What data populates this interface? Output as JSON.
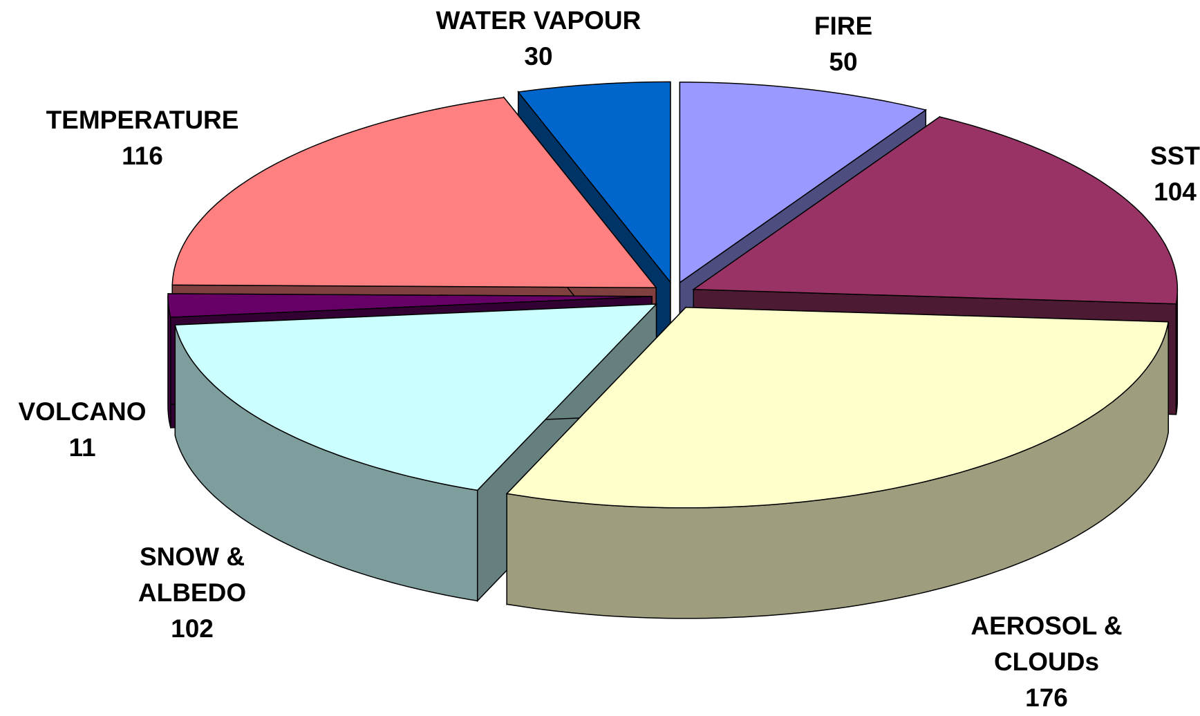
{
  "chart_data": {
    "type": "pie3d",
    "categories": [
      "FIRE",
      "SST",
      "AEROSOL & CLOUDs",
      "SNOW & ALBEDO",
      "VOLCANO",
      "TEMPERATURE",
      "WATER VAPOUR"
    ],
    "values": [
      50,
      104,
      176,
      102,
      11,
      116,
      30
    ],
    "colors": [
      "#9999ff",
      "#993366",
      "#ffffcc",
      "#ccffff",
      "#660066",
      "#ff8080",
      "#0066cc"
    ]
  }
}
